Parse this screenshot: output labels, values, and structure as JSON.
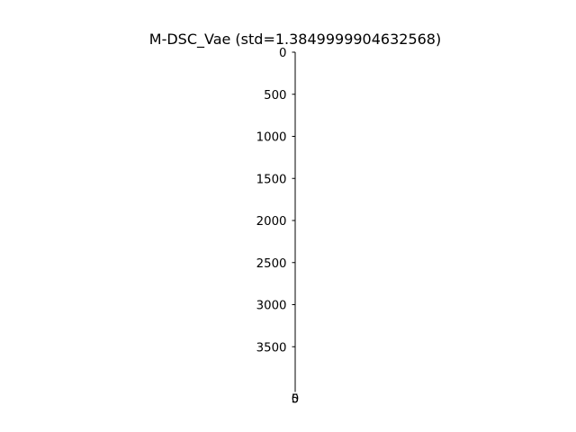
{
  "chart_data": {
    "type": "image",
    "title": "M-DSC_Vae (std=1.3849999904632568)",
    "xlabel": "",
    "ylabel": "",
    "y_ticks": [
      0,
      500,
      1000,
      1500,
      2000,
      2500,
      3000,
      3500
    ],
    "y_tick_labels": [
      "0",
      "500",
      "1000",
      "1500",
      "2000",
      "2500",
      "3000",
      "3500"
    ],
    "ylim": [
      4000,
      0
    ],
    "x_ticks": [
      0,
      5
    ],
    "x_tick_labels": [
      "0",
      "5"
    ],
    "grid": false,
    "legend": "none",
    "colors": {
      "axis": "#000000",
      "text": "#000000",
      "background": "#ffffff"
    }
  }
}
